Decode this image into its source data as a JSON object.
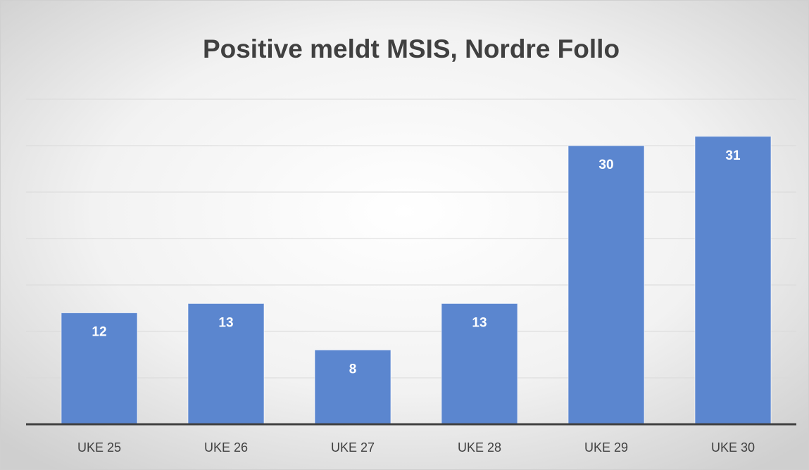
{
  "chart_data": {
    "type": "bar",
    "title": "Positive meldt MSIS, Nordre Follo",
    "categories": [
      "UKE 25",
      "UKE 26",
      "UKE 27",
      "UKE 28",
      "UKE 29",
      "UKE 30"
    ],
    "values": [
      12,
      13,
      8,
      13,
      30,
      31
    ],
    "color": "#5b86cf",
    "ylim": [
      0,
      35
    ],
    "yticks": [
      0,
      5,
      10,
      15,
      20,
      25,
      30,
      35
    ],
    "grid": true
  }
}
